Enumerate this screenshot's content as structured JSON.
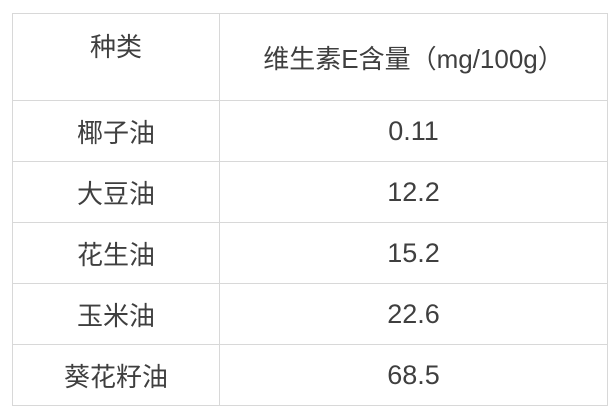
{
  "colors": {
    "border": "#d8d8d8",
    "text": "#3f3f3f",
    "background": "#ffffff"
  },
  "table": {
    "headers": {
      "type": "种类",
      "value": "维生素E含量（mg/100g）"
    },
    "rows": [
      {
        "type": "椰子油",
        "value": "0.11"
      },
      {
        "type": "大豆油",
        "value": "12.2"
      },
      {
        "type": "花生油",
        "value": "15.2"
      },
      {
        "type": "玉米油",
        "value": "22.6"
      },
      {
        "type": "葵花籽油",
        "value": "68.5"
      }
    ]
  },
  "chart_data": {
    "type": "table",
    "columns": [
      "种类",
      "维生素E含量（mg/100g）"
    ],
    "categories": [
      "椰子油",
      "大豆油",
      "花生油",
      "玉米油",
      "葵花籽油"
    ],
    "values": [
      0.11,
      12.2,
      15.2,
      22.6,
      68.5
    ],
    "value_unit": "mg/100g"
  }
}
